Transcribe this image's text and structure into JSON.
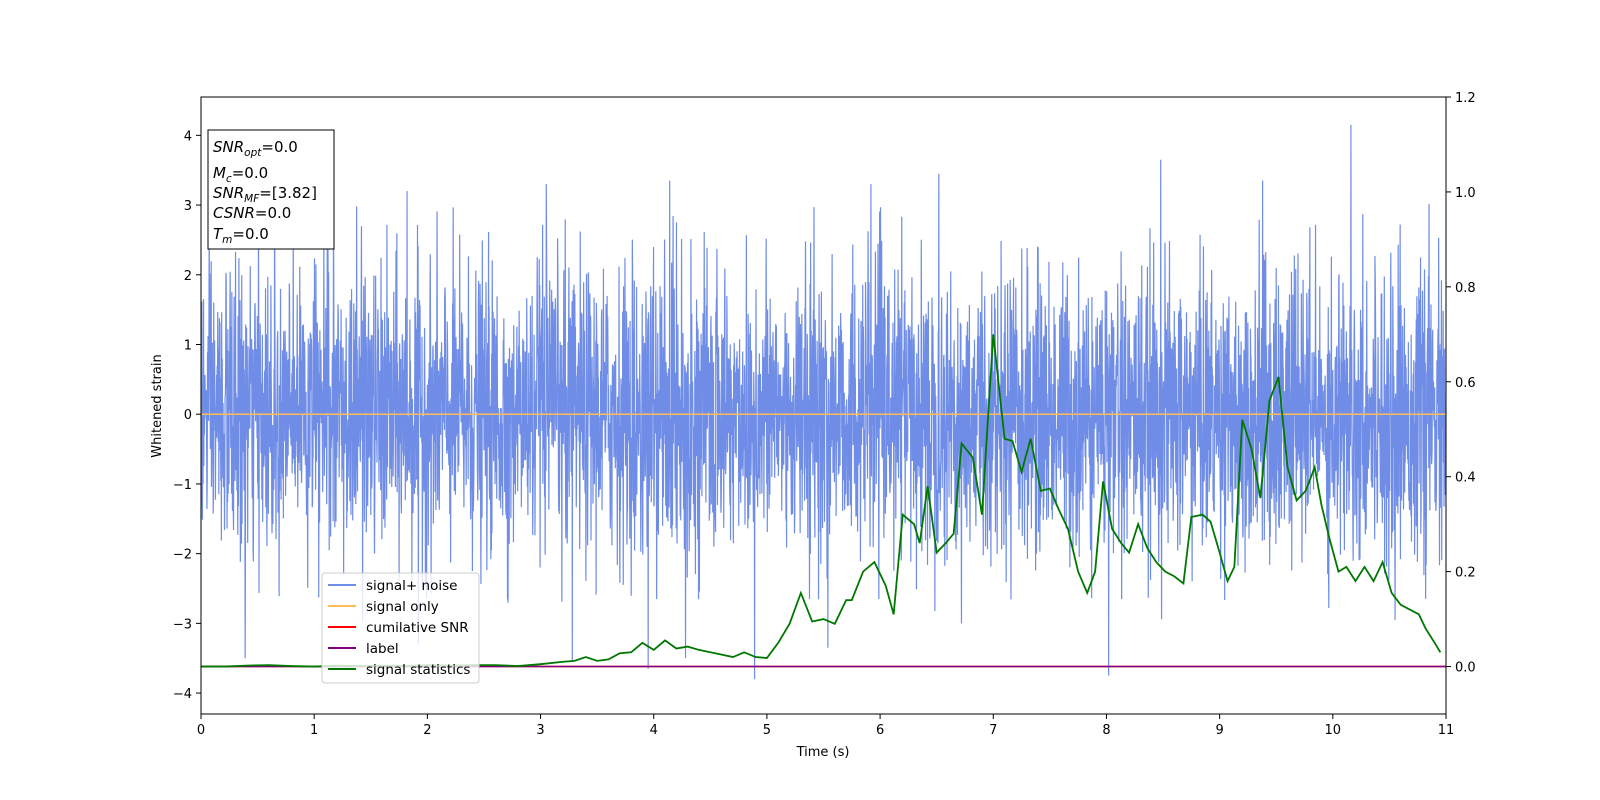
{
  "chart_data": {
    "type": "line",
    "xlabel": "Time (s)",
    "ylabel": "Whitened strain",
    "xlim": [
      0,
      11
    ],
    "ylim": [
      -4.3,
      4.55
    ],
    "y2lim": [
      -0.1,
      1.2
    ],
    "x_ticks": [
      "0",
      "1",
      "2",
      "3",
      "4",
      "5",
      "6",
      "7",
      "8",
      "9",
      "10",
      "11"
    ],
    "y_ticks": [
      "−4",
      "−3",
      "−2",
      "−1",
      "0",
      "1",
      "2",
      "3",
      "4"
    ],
    "y2_ticks": [
      "0.0",
      "0.2",
      "0.4",
      "0.6",
      "0.8",
      "1.0",
      "1.2"
    ],
    "grid": false,
    "legend_placement": "lower-left",
    "annotation": {
      "snr_opt": {
        "base": "SNR",
        "sub": "opt",
        "value": "=0.0"
      },
      "mc": {
        "base": "M",
        "sub": "c",
        "value": "=0.0"
      },
      "snr_mf": {
        "base": "SNR",
        "sub": "MF",
        "value": "=[3.82]"
      },
      "csnr": {
        "base": "CSNR",
        "value": "=0.0"
      },
      "tm": {
        "base": "T",
        "sub": "m",
        "value": "=0.0"
      }
    },
    "series": [
      {
        "name": "signal+ noise",
        "color": "#6f8de6",
        "axis": "left",
        "description_values": "whitened noise, approx. std 1, range about −3.8 to 4.2",
        "std": 1.0,
        "spikes": [
          [
            0.39,
            -3.5
          ],
          [
            0.65,
            3.2
          ],
          [
            1.12,
            3.25
          ],
          [
            1.82,
            3.2
          ],
          [
            1.92,
            -3.3
          ],
          [
            3.05,
            3.3
          ],
          [
            3.28,
            -3.55
          ],
          [
            3.95,
            -3.65
          ],
          [
            4.14,
            3.35
          ],
          [
            4.28,
            -3.5
          ],
          [
            4.89,
            -3.8
          ],
          [
            5.54,
            -3.35
          ],
          [
            5.92,
            3.3
          ],
          [
            6.52,
            3.45
          ],
          [
            6.72,
            -3.0
          ],
          [
            8.02,
            -3.75
          ],
          [
            8.48,
            3.65
          ],
          [
            9.38,
            3.35
          ],
          [
            10.16,
            4.15
          ],
          [
            10.55,
            -2.95
          ]
        ]
      },
      {
        "name": "signal only",
        "color": "#ffbb55",
        "axis": "left",
        "values": [
          [
            0,
            0
          ],
          [
            11,
            0
          ]
        ]
      },
      {
        "name": "cumilative SNR",
        "color": "#ff0000",
        "axis": "right",
        "values": [
          [
            0,
            0
          ],
          [
            11,
            0
          ]
        ]
      },
      {
        "name": "label",
        "color": "#800080",
        "axis": "right",
        "values": [
          [
            0,
            0
          ],
          [
            11,
            0
          ]
        ]
      },
      {
        "name": "signal statistics",
        "color": "#007800",
        "axis": "right",
        "values": [
          [
            0.0,
            0.0
          ],
          [
            0.2,
            0.0
          ],
          [
            0.4,
            0.002
          ],
          [
            0.6,
            0.003
          ],
          [
            0.8,
            0.001
          ],
          [
            1.0,
            0.0
          ],
          [
            1.2,
            0.002
          ],
          [
            1.4,
            0.001
          ],
          [
            1.6,
            0.002
          ],
          [
            1.8,
            0.001
          ],
          [
            2.0,
            0.003
          ],
          [
            2.2,
            0.002
          ],
          [
            2.4,
            0.003
          ],
          [
            2.6,
            0.003
          ],
          [
            2.8,
            0.001
          ],
          [
            3.0,
            0.005
          ],
          [
            3.2,
            0.01
          ],
          [
            3.3,
            0.012
          ],
          [
            3.4,
            0.02
          ],
          [
            3.5,
            0.012
          ],
          [
            3.6,
            0.015
          ],
          [
            3.7,
            0.028
          ],
          [
            3.8,
            0.03
          ],
          [
            3.9,
            0.05
          ],
          [
            4.0,
            0.035
          ],
          [
            4.1,
            0.055
          ],
          [
            4.2,
            0.038
          ],
          [
            4.3,
            0.042
          ],
          [
            4.4,
            0.035
          ],
          [
            4.5,
            0.03
          ],
          [
            4.6,
            0.025
          ],
          [
            4.7,
            0.02
          ],
          [
            4.8,
            0.03
          ],
          [
            4.9,
            0.02
          ],
          [
            5.0,
            0.018
          ],
          [
            5.1,
            0.05
          ],
          [
            5.2,
            0.09
          ],
          [
            5.3,
            0.155
          ],
          [
            5.4,
            0.095
          ],
          [
            5.5,
            0.1
          ],
          [
            5.6,
            0.09
          ],
          [
            5.7,
            0.14
          ],
          [
            5.75,
            0.14
          ],
          [
            5.85,
            0.2
          ],
          [
            5.95,
            0.22
          ],
          [
            6.05,
            0.17
          ],
          [
            6.12,
            0.11
          ],
          [
            6.2,
            0.32
          ],
          [
            6.3,
            0.3
          ],
          [
            6.35,
            0.26
          ],
          [
            6.42,
            0.38
          ],
          [
            6.5,
            0.24
          ],
          [
            6.58,
            0.26
          ],
          [
            6.65,
            0.28
          ],
          [
            6.72,
            0.47
          ],
          [
            6.82,
            0.44
          ],
          [
            6.9,
            0.32
          ],
          [
            7.0,
            0.7
          ],
          [
            7.1,
            0.48
          ],
          [
            7.17,
            0.475
          ],
          [
            7.25,
            0.41
          ],
          [
            7.33,
            0.48
          ],
          [
            7.42,
            0.37
          ],
          [
            7.5,
            0.375
          ],
          [
            7.58,
            0.33
          ],
          [
            7.66,
            0.29
          ],
          [
            7.75,
            0.2
          ],
          [
            7.83,
            0.155
          ],
          [
            7.9,
            0.2
          ],
          [
            7.97,
            0.39
          ],
          [
            8.05,
            0.29
          ],
          [
            8.13,
            0.26
          ],
          [
            8.2,
            0.24
          ],
          [
            8.28,
            0.3
          ],
          [
            8.36,
            0.25
          ],
          [
            8.44,
            0.22
          ],
          [
            8.52,
            0.2
          ],
          [
            8.6,
            0.19
          ],
          [
            8.68,
            0.175
          ],
          [
            8.75,
            0.315
          ],
          [
            8.85,
            0.32
          ],
          [
            8.92,
            0.305
          ],
          [
            9.0,
            0.24
          ],
          [
            9.07,
            0.18
          ],
          [
            9.13,
            0.21
          ],
          [
            9.2,
            0.52
          ],
          [
            9.28,
            0.46
          ],
          [
            9.36,
            0.355
          ],
          [
            9.44,
            0.56
          ],
          [
            9.52,
            0.61
          ],
          [
            9.6,
            0.42
          ],
          [
            9.68,
            0.35
          ],
          [
            9.76,
            0.37
          ],
          [
            9.84,
            0.42
          ],
          [
            9.9,
            0.34
          ],
          [
            9.97,
            0.27
          ],
          [
            10.05,
            0.2
          ],
          [
            10.12,
            0.21
          ],
          [
            10.2,
            0.18
          ],
          [
            10.28,
            0.21
          ],
          [
            10.36,
            0.18
          ],
          [
            10.44,
            0.22
          ],
          [
            10.52,
            0.155
          ],
          [
            10.6,
            0.13
          ],
          [
            10.68,
            0.12
          ],
          [
            10.76,
            0.11
          ],
          [
            10.82,
            0.08
          ],
          [
            10.9,
            0.05
          ],
          [
            10.95,
            0.03
          ]
        ]
      }
    ]
  }
}
